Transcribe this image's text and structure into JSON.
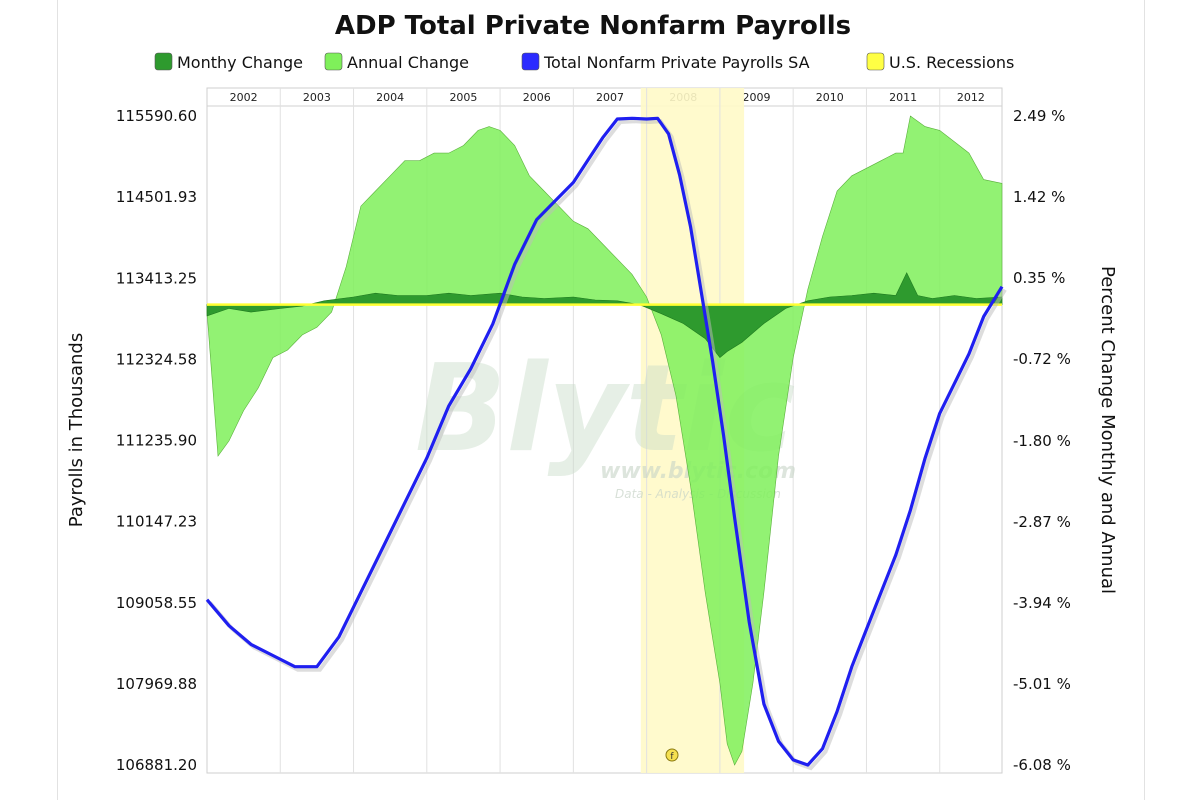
{
  "chart_data": {
    "type": "area",
    "title": "ADP Total Private Nonfarm Payrolls",
    "ylabel_left": "Payrolls in Thousands",
    "ylabel_right": "Percent Change Monthly and Annual",
    "left_ticks": [
      "115590.60",
      "114501.93",
      "113413.25",
      "112324.58",
      "111235.90",
      "110147.23",
      "109058.55",
      "107969.88",
      "106881.20"
    ],
    "right_ticks": [
      "2.49 %",
      "1.42 %",
      "0.35 %",
      "-0.72 %",
      "-1.80 %",
      "-2.87 %",
      "-3.94 %",
      "-5.01 %",
      "-6.08 %"
    ],
    "left_ylim": [
      106881.2,
      115590.6
    ],
    "right_ylim": [
      -6.08,
      2.49
    ],
    "x_range": [
      2002.0,
      2012.85
    ],
    "years": [
      "2002",
      "2003",
      "2004",
      "2005",
      "2006",
      "2007",
      "2008",
      "2009",
      "2010",
      "2011",
      "2012"
    ],
    "legend": [
      {
        "name": "Monthy Change",
        "color": "#2e9a2e"
      },
      {
        "name": "Annual Change",
        "color": "#7ff05a"
      },
      {
        "name": "Total Nonfarm Private Payrolls SA",
        "color": "#2b2bff"
      },
      {
        "name": "U.S. Recessions",
        "color": "#ffff44"
      }
    ],
    "recession": [
      2007.92,
      2009.33
    ],
    "series": [
      {
        "name": "Annual Change",
        "axis": "right",
        "x": [
          2002.0,
          2002.15,
          2002.3,
          2002.5,
          2002.7,
          2002.9,
          2003.1,
          2003.3,
          2003.5,
          2003.7,
          2003.9,
          2004.1,
          2004.3,
          2004.5,
          2004.7,
          2004.9,
          2005.1,
          2005.3,
          2005.5,
          2005.7,
          2005.85,
          2006.0,
          2006.2,
          2006.4,
          2006.6,
          2006.8,
          2007.0,
          2007.2,
          2007.4,
          2007.6,
          2007.8,
          2008.0,
          2008.2,
          2008.4,
          2008.6,
          2008.8,
          2009.0,
          2009.1,
          2009.2,
          2009.3,
          2009.45,
          2009.6,
          2009.8,
          2010.0,
          2010.2,
          2010.4,
          2010.6,
          2010.8,
          2011.0,
          2011.2,
          2011.4,
          2011.5,
          2011.6,
          2011.8,
          2012.0,
          2012.2,
          2012.4,
          2012.6,
          2012.85
        ],
        "values": [
          -0.1,
          -2.0,
          -1.8,
          -1.4,
          -1.1,
          -0.7,
          -0.6,
          -0.4,
          -0.3,
          -0.1,
          0.5,
          1.3,
          1.5,
          1.7,
          1.9,
          1.9,
          2.0,
          2.0,
          2.1,
          2.3,
          2.35,
          2.3,
          2.1,
          1.7,
          1.5,
          1.3,
          1.1,
          1.0,
          0.8,
          0.6,
          0.4,
          0.1,
          -0.4,
          -1.2,
          -2.4,
          -3.8,
          -5.0,
          -5.8,
          -6.08,
          -5.9,
          -5.0,
          -3.8,
          -2.0,
          -0.7,
          0.2,
          0.9,
          1.5,
          1.7,
          1.8,
          1.9,
          2.0,
          2.0,
          2.49,
          2.35,
          2.3,
          2.15,
          2.0,
          1.65,
          1.6
        ]
      },
      {
        "name": "Monthy Change",
        "axis": "right",
        "x": [
          2002.0,
          2002.3,
          2002.6,
          2003.0,
          2003.3,
          2003.6,
          2004.0,
          2004.3,
          2004.6,
          2005.0,
          2005.3,
          2005.6,
          2006.0,
          2006.3,
          2006.6,
          2007.0,
          2007.3,
          2007.6,
          2007.9,
          2008.2,
          2008.5,
          2008.8,
          2009.0,
          2009.1,
          2009.3,
          2009.6,
          2009.9,
          2010.2,
          2010.5,
          2010.8,
          2011.1,
          2011.4,
          2011.55,
          2011.7,
          2011.9,
          2012.2,
          2012.5,
          2012.85
        ],
        "values": [
          -0.15,
          -0.05,
          -0.1,
          -0.05,
          -0.02,
          0.05,
          0.1,
          0.15,
          0.12,
          0.12,
          0.15,
          0.12,
          0.15,
          0.1,
          0.08,
          0.1,
          0.06,
          0.05,
          0.0,
          -0.12,
          -0.25,
          -0.45,
          -0.7,
          -0.62,
          -0.5,
          -0.25,
          -0.05,
          0.05,
          0.1,
          0.12,
          0.15,
          0.12,
          0.42,
          0.12,
          0.08,
          0.12,
          0.08,
          0.1
        ]
      },
      {
        "name": "Total Nonfarm Private Payrolls SA",
        "axis": "left",
        "x": [
          2002.0,
          2002.3,
          2002.6,
          2002.9,
          2003.2,
          2003.5,
          2003.8,
          2004.1,
          2004.4,
          2004.7,
          2005.0,
          2005.3,
          2005.6,
          2005.9,
          2006.2,
          2006.5,
          2006.8,
          2007.0,
          2007.2,
          2007.4,
          2007.6,
          2007.8,
          2008.0,
          2008.15,
          2008.3,
          2008.45,
          2008.6,
          2008.75,
          2008.9,
          2009.05,
          2009.2,
          2009.4,
          2009.6,
          2009.8,
          2010.0,
          2010.2,
          2010.4,
          2010.6,
          2010.8,
          2011.0,
          2011.2,
          2011.4,
          2011.6,
          2011.8,
          2012.0,
          2012.2,
          2012.4,
          2012.6,
          2012.85
        ],
        "values": [
          109100,
          108750,
          108500,
          108350,
          108200,
          108200,
          108600,
          109200,
          109800,
          110400,
          111000,
          111700,
          112200,
          112800,
          113600,
          114200,
          114500,
          114700,
          115000,
          115300,
          115550,
          115560,
          115550,
          115560,
          115350,
          114800,
          114100,
          113200,
          112300,
          111300,
          110200,
          108800,
          107700,
          107200,
          106950,
          106881,
          107100,
          107600,
          108200,
          108700,
          109200,
          109700,
          110300,
          111000,
          111600,
          112000,
          112400,
          112900,
          113300
        ]
      }
    ],
    "annotation_marker": "f"
  }
}
